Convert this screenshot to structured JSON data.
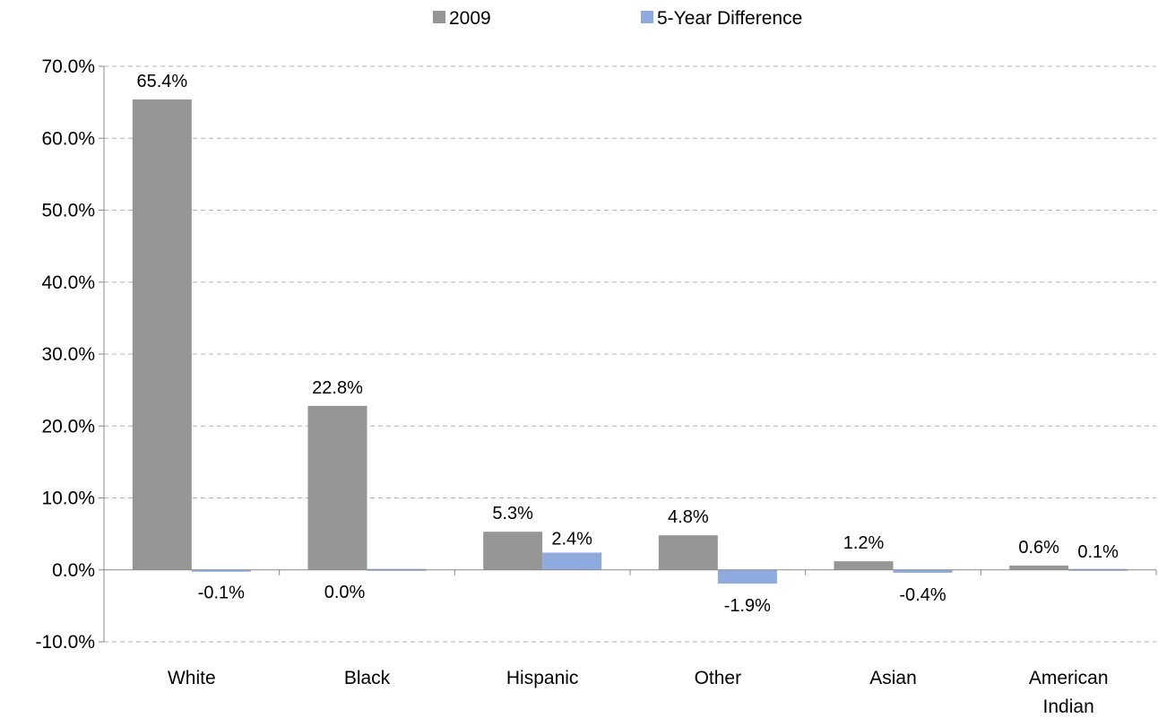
{
  "chart_data": {
    "type": "bar",
    "categories": [
      "White",
      "Black",
      "Hispanic",
      "Other",
      "Asian",
      "American Indian"
    ],
    "category_lines": [
      [
        "White"
      ],
      [
        "Black"
      ],
      [
        "Hispanic"
      ],
      [
        "Other"
      ],
      [
        "Asian"
      ],
      [
        "American",
        "Indian"
      ]
    ],
    "series": [
      {
        "name": "2009",
        "color": "#969696",
        "values": [
          65.4,
          22.8,
          5.3,
          4.8,
          1.2,
          0.6
        ],
        "labels": [
          "65.4%",
          "22.8%",
          "5.3%",
          "4.8%",
          "1.2%",
          "0.6%"
        ]
      },
      {
        "name": "5-Year Difference",
        "color": "#8eaadf",
        "values": [
          -0.1,
          0.0,
          2.4,
          -1.9,
          -0.4,
          0.1
        ],
        "labels": [
          "-0.1%",
          "0.0%",
          "2.4%",
          "-1.9%",
          "-0.4%",
          "0.1%"
        ]
      }
    ],
    "ylim": [
      -10,
      70
    ],
    "yticks": [
      -10,
      0,
      10,
      20,
      30,
      40,
      50,
      60,
      70
    ],
    "ytick_labels": [
      "-10.0%",
      "0.0%",
      "10.0%",
      "20.0%",
      "30.0%",
      "40.0%",
      "50.0%",
      "60.0%",
      "70.0%"
    ],
    "grid": "horizontal dashed",
    "legend_position": "top"
  }
}
